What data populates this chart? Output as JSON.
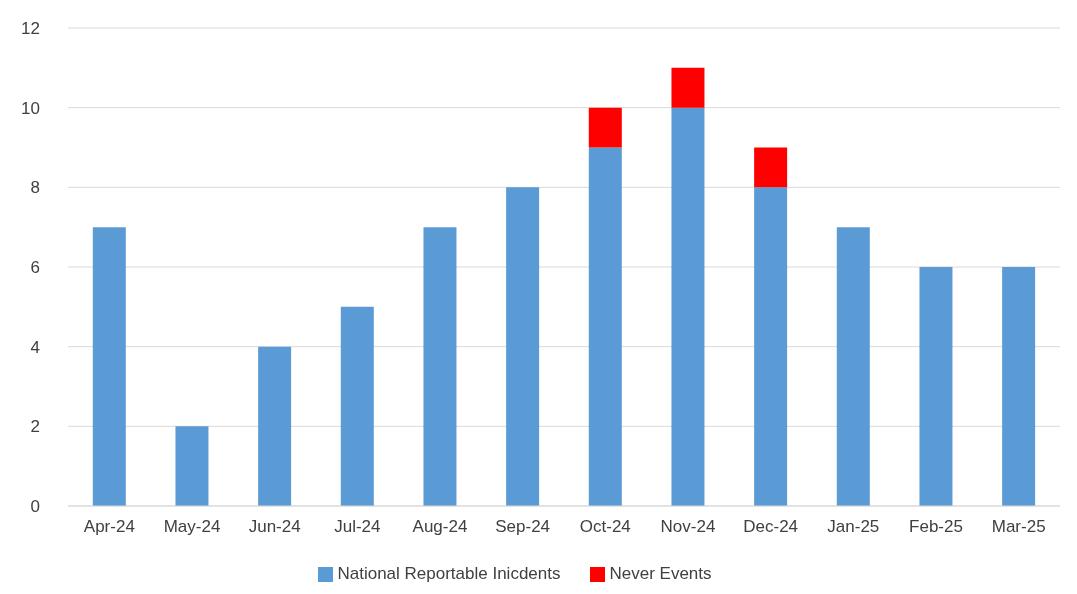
{
  "chart_data": {
    "type": "bar",
    "stacked": true,
    "categories": [
      "Apr-24",
      "May-24",
      "Jun-24",
      "Jul-24",
      "Aug-24",
      "Sep-24",
      "Oct-24",
      "Nov-24",
      "Dec-24",
      "Jan-25",
      "Feb-25",
      "Mar-25"
    ],
    "series": [
      {
        "name": "National Reportable Inicdents",
        "color": "#5b9bd5",
        "values": [
          7,
          2,
          4,
          5,
          7,
          8,
          9,
          10,
          8,
          7,
          6,
          6
        ]
      },
      {
        "name": "Never Events",
        "color": "#ff0000",
        "values": [
          null,
          null,
          null,
          null,
          null,
          null,
          1,
          1,
          1,
          null,
          null,
          null
        ]
      }
    ],
    "ylim": [
      0,
      12
    ],
    "yticks": [
      0,
      2,
      4,
      6,
      8,
      10,
      12
    ],
    "grid": "y",
    "legend": "bottom"
  }
}
